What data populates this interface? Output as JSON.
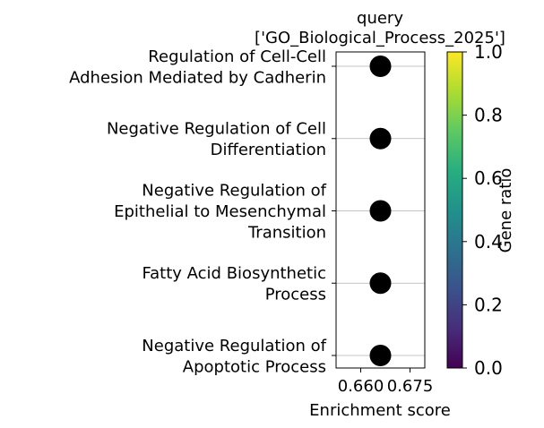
{
  "chart_data": {
    "type": "scatter",
    "title": "query\n['GO_Biological_Process_2025']",
    "xlabel": "Enrichment score",
    "ylabel": "",
    "xlim": [
      0.6525,
      0.6795
    ],
    "x_ticks": [
      0.66,
      0.675
    ],
    "x_tick_labels": [
      "0.660",
      "0.675"
    ],
    "categories": [
      "Regulation of Cell-Cell\nAdhesion Mediated by Cadherin",
      "Negative Regulation of Cell\nDifferentiation",
      "Negative Regulation of\nEpithelial to Mesenchymal\nTransition",
      "Fatty Acid Biosynthetic\nProcess",
      "Negative Regulation of\nApoptotic Process"
    ],
    "points": [
      {
        "category_index": 0,
        "x": 0.666,
        "gene_ratio": 1.0
      },
      {
        "category_index": 1,
        "x": 0.666,
        "gene_ratio": 1.0
      },
      {
        "category_index": 2,
        "x": 0.666,
        "gene_ratio": 1.0
      },
      {
        "category_index": 3,
        "x": 0.666,
        "gene_ratio": 1.0
      },
      {
        "category_index": 4,
        "x": 0.666,
        "gene_ratio": 1.0
      }
    ],
    "point_color": "#000000",
    "grid": "horizontal",
    "colorbar": {
      "label": "Gene ratio",
      "colormap": "viridis",
      "range": [
        0.0,
        1.0
      ],
      "ticks": [
        "0.0",
        "0.2",
        "0.4",
        "0.6",
        "0.8",
        "1.0"
      ],
      "stops": [
        "#440154",
        "#472d7b",
        "#3b528b",
        "#2c728e",
        "#21918c",
        "#28ae80",
        "#5ec962",
        "#addc30",
        "#fde725"
      ]
    }
  }
}
